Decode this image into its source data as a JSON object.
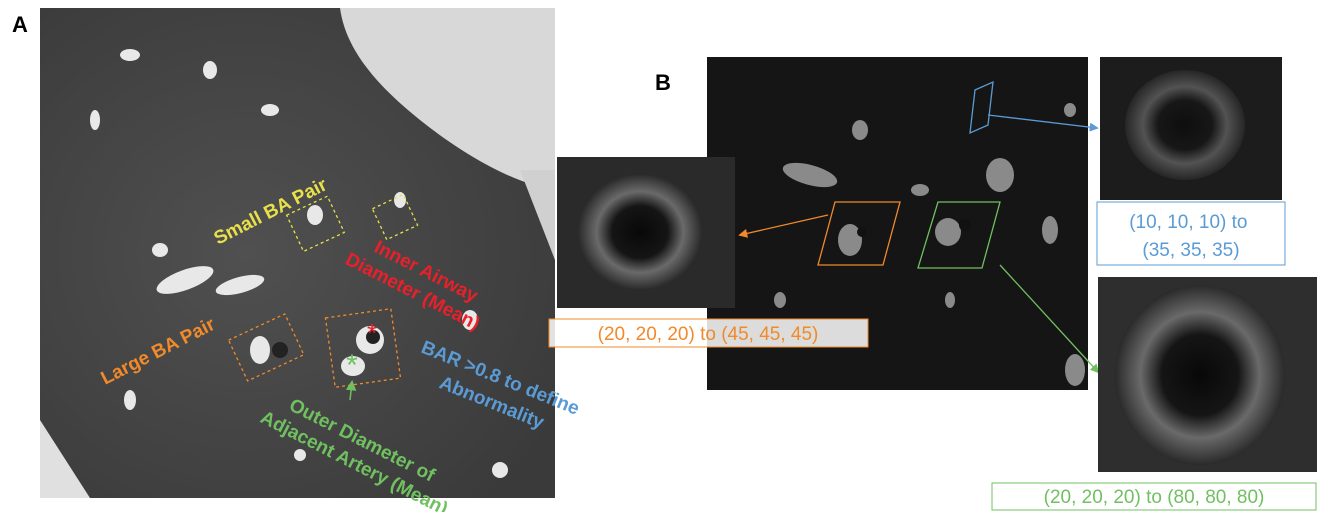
{
  "panels": {
    "a": {
      "label": "A",
      "annotations": [
        {
          "lines": [
            "Small BA Pair"
          ]
        },
        {
          "lines": [
            "Inner Airway",
            "Diameter (Mean)"
          ]
        },
        {
          "lines": [
            "Large BA Pair"
          ]
        },
        {
          "lines": [
            "BAR >0.8  to define",
            "Abnormality"
          ]
        },
        {
          "lines": [
            "Outer Diameter of",
            "Adjacent Artery (Mean)"
          ]
        }
      ]
    },
    "b": {
      "label": "B",
      "crops": [
        {
          "lines": [
            "(20, 20, 20) to (45, 45, 45)"
          ]
        },
        {
          "lines": [
            "(10, 10, 10) to",
            "(35, 35, 35)"
          ]
        },
        {
          "lines": [
            "(20, 20, 20) to (80, 80, 80)"
          ]
        }
      ]
    }
  }
}
